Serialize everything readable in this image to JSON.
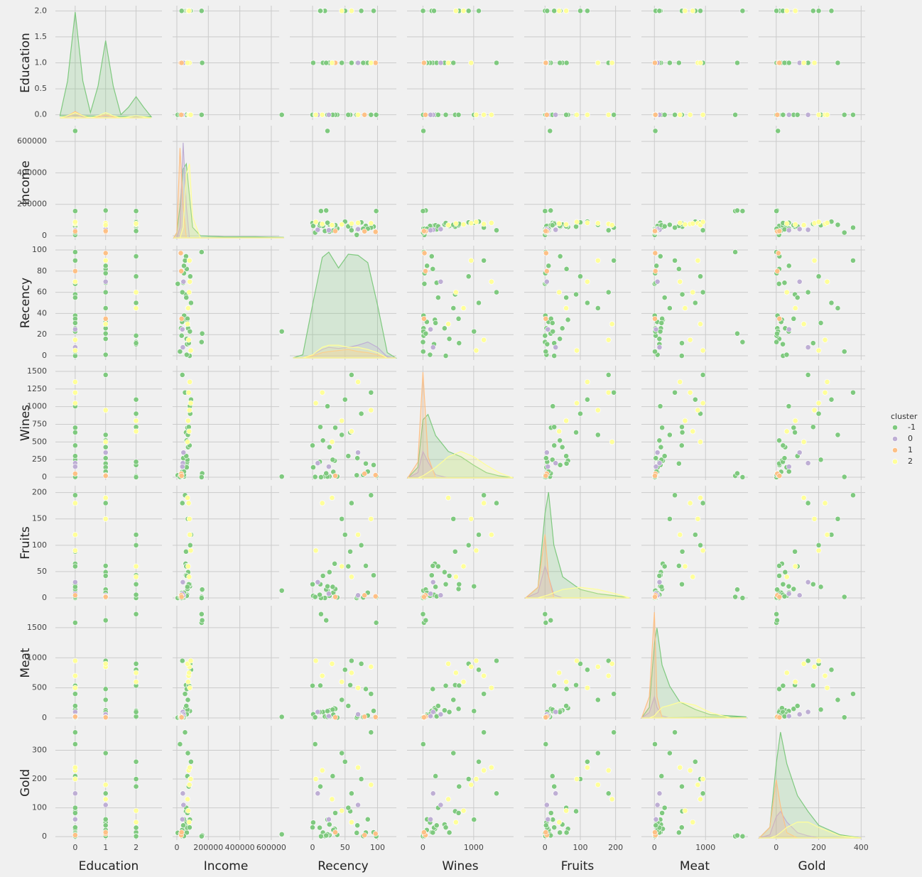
{
  "chart_data": {
    "type": "pairplot",
    "variables": [
      "Education",
      "Income",
      "Recency",
      "Wines",
      "Fruits",
      "Meat",
      "Gold"
    ],
    "grid": true,
    "legend": {
      "title": "cluster",
      "position": "right"
    },
    "axes": [
      {
        "xlim": [
          -0.65,
          2.85
        ],
        "xticks": [
          0,
          1,
          2
        ],
        "ylim": [
          -0.1,
          2.1
        ],
        "yticks": [
          {
            "value": 0,
            "label": "0.0"
          },
          {
            "value": 0.5,
            "label": "0.5"
          },
          {
            "value": 1,
            "label": "1.0"
          },
          {
            "value": 1.5,
            "label": "1.5"
          },
          {
            "value": 2,
            "label": "2.0"
          }
        ]
      },
      {
        "xlim": [
          -27000,
          650000
        ],
        "xticks": [
          0,
          200000,
          400000,
          600000
        ],
        "ylim": [
          -27000,
          700000
        ],
        "yticks": [
          0,
          200000,
          400000,
          600000
        ]
      },
      {
        "xlim": [
          -35,
          129
        ],
        "xticks": [
          0,
          50,
          100
        ],
        "ylim": [
          -4,
          104
        ],
        "yticks": [
          0,
          20,
          40,
          60,
          80,
          100
        ]
      },
      {
        "xlim": [
          -314,
          1786
        ],
        "xticks": [
          0,
          1000
        ],
        "ylim": [
          -40,
          1580
        ],
        "yticks": [
          0,
          250,
          500,
          750,
          1000,
          1250,
          1500
        ]
      },
      {
        "xlim": [
          -59,
          243
        ],
        "xticks": [
          0,
          100,
          200
        ],
        "ylim": [
          -4,
          213
        ],
        "yticks": [
          0,
          50,
          100,
          150,
          200
        ]
      },
      {
        "xlim": [
          -254,
          1831
        ],
        "xticks": [
          0,
          1000
        ],
        "ylim": [
          -35,
          1864
        ],
        "yticks": [
          0,
          500,
          1000,
          1500
        ]
      },
      {
        "xlim": [
          -83,
          419
        ],
        "xticks": [
          0,
          200,
          400
        ],
        "ylim": [
          -12,
          385
        ],
        "yticks": [
          0,
          100,
          200,
          300
        ]
      }
    ],
    "series": [
      {
        "name": "-1",
        "color": "#7fc97f",
        "values": [
          [
            0,
            58138,
            58,
            635,
            88,
            546,
            88
          ],
          [
            0,
            46344,
            38,
            11,
            1,
            6,
            6
          ],
          [
            1,
            71613,
            26,
            426,
            49,
            127,
            42
          ],
          [
            0,
            26646,
            26,
            11,
            4,
            20,
            5
          ],
          [
            2,
            58293,
            94,
            173,
            43,
            118,
            15
          ],
          [
            1,
            62513,
            16,
            520,
            42,
            98,
            14
          ],
          [
            0,
            55635,
            34,
            235,
            65,
            164,
            27
          ],
          [
            1,
            33454,
            32,
            76,
            10,
            56,
            23
          ],
          [
            2,
            30351,
            19,
            14,
            0,
            24,
            2
          ],
          [
            0,
            5648,
            68,
            28,
            0,
            6,
            13
          ],
          [
            1,
            63033,
            82,
            194,
            61,
            480,
            14
          ],
          [
            0,
            666666,
            23,
            9,
            14,
            18,
            8
          ],
          [
            0,
            157243,
            98,
            20,
            2,
            1582,
            1
          ],
          [
            1,
            160803,
            21,
            55,
            16,
            1622,
            4
          ],
          [
            2,
            157146,
            13,
            1,
            0,
            1725,
            1
          ],
          [
            0,
            82800,
            23,
            1006,
            22,
            115,
            59
          ],
          [
            1,
            44931,
            78,
            32,
            1,
            14,
            2
          ],
          [
            2,
            65324,
            11,
            218,
            6,
            98,
            31
          ],
          [
            0,
            81044,
            0,
            450,
            26,
            535,
            32
          ],
          [
            1,
            62499,
            1,
            140,
            4,
            61,
            49
          ],
          [
            0,
            67353,
            35,
            702,
            17,
            151,
            82
          ],
          [
            2,
            75777,
            12,
            712,
            26,
            538,
            174
          ],
          [
            0,
            66991,
            31,
            248,
            21,
            139,
            210
          ],
          [
            1,
            40689,
            69,
            270,
            3,
            27,
            39
          ],
          [
            2,
            90000,
            50,
            1100,
            120,
            800,
            260
          ],
          [
            0,
            20000,
            4,
            5,
            2,
            10,
            321
          ],
          [
            1,
            35000,
            60,
            1450,
            180,
            950,
            150
          ],
          [
            0,
            52000,
            90,
            1200,
            195,
            400,
            362
          ],
          [
            1,
            70000,
            45,
            600,
            150,
            300,
            290
          ],
          [
            2,
            85000,
            75,
            900,
            100,
            900,
            200
          ],
          [
            0,
            60000,
            55,
            300,
            60,
            200,
            100
          ],
          [
            1,
            45000,
            85,
            80,
            10,
            40,
            60
          ]
        ]
      },
      {
        "name": "0",
        "color": "#beaed4",
        "values": [
          [
            0,
            38000,
            8,
            200,
            30,
            100,
            150
          ],
          [
            1,
            42000,
            70,
            350,
            5,
            60,
            110
          ],
          [
            0,
            35000,
            25,
            150,
            8,
            30,
            60
          ]
        ]
      },
      {
        "name": "1",
        "color": "#fdc086",
        "values": [
          [
            1,
            25000,
            97,
            30,
            3,
            15,
            10
          ],
          [
            0,
            28000,
            80,
            50,
            5,
            20,
            5
          ],
          [
            1,
            30000,
            35,
            20,
            2,
            10,
            15
          ]
        ]
      },
      {
        "name": "2",
        "color": "#ffff99",
        "values": [
          [
            0,
            75000,
            15,
            1200,
            180,
            700,
            230
          ],
          [
            1,
            80000,
            90,
            950,
            150,
            850,
            180
          ],
          [
            2,
            72000,
            45,
            800,
            60,
            600,
            90
          ],
          [
            0,
            82000,
            70,
            1350,
            120,
            500,
            240
          ],
          [
            1,
            68000,
            30,
            500,
            190,
            900,
            130
          ],
          [
            2,
            78000,
            60,
            650,
            40,
            750,
            50
          ],
          [
            0,
            88000,
            5,
            1050,
            90,
            950,
            200
          ]
        ]
      }
    ],
    "kde": [
      {
        "x": [
          -0.5,
          -0.25,
          0,
          0.25,
          0.5,
          0.75,
          1,
          1.25,
          1.5,
          1.75,
          2,
          2.25,
          2.5
        ],
        "values": [
          [
            0.02,
            0.35,
            1.0,
            0.35,
            0.05,
            0.3,
            0.73,
            0.3,
            0.03,
            0.1,
            0.2,
            0.1,
            0.01
          ],
          [
            0,
            0.01,
            0.03,
            0.01,
            0,
            0.01,
            0.02,
            0.01,
            0,
            0,
            0.01,
            0,
            0
          ],
          [
            0,
            0.02,
            0.06,
            0.02,
            0,
            0.01,
            0.03,
            0.01,
            0,
            0,
            0,
            0,
            0
          ],
          [
            0,
            0.02,
            0.05,
            0.02,
            0,
            0.02,
            0.05,
            0.02,
            0,
            0.01,
            0.02,
            0.01,
            0
          ]
        ]
      },
      {
        "x": [
          -20000,
          0,
          20000,
          40000,
          60000,
          80000,
          100000,
          150000,
          300000,
          500000,
          680000
        ],
        "values": [
          [
            0,
            0.05,
            0.3,
            0.65,
            0.7,
            0.4,
            0.1,
            0.02,
            0.01,
            0.01,
            0.005
          ],
          [
            0,
            0,
            0.1,
            0.9,
            0.3,
            0,
            0,
            0,
            0,
            0,
            0
          ],
          [
            0,
            0.05,
            0.85,
            0.3,
            0,
            0,
            0,
            0,
            0,
            0,
            0
          ],
          [
            0,
            0,
            0,
            0.1,
            0.6,
            0.7,
            0.2,
            0,
            0,
            0,
            0
          ]
        ]
      },
      {
        "x": [
          -30,
          -15,
          0,
          15,
          25,
          40,
          55,
          70,
          85,
          100,
          115,
          128
        ],
        "values": [
          [
            0,
            0.03,
            0.5,
            0.95,
            1.0,
            0.85,
            0.98,
            0.97,
            0.9,
            0.5,
            0.05,
            0
          ],
          [
            0,
            0,
            0.03,
            0.08,
            0.1,
            0.09,
            0.1,
            0.12,
            0.15,
            0.1,
            0.01,
            0
          ],
          [
            0,
            0,
            0.02,
            0.05,
            0.06,
            0.07,
            0.08,
            0.06,
            0.05,
            0.03,
            0,
            0
          ],
          [
            0,
            0,
            0.03,
            0.1,
            0.12,
            0.12,
            0.1,
            0.1,
            0.08,
            0.05,
            0,
            0
          ]
        ]
      },
      {
        "x": [
          -300,
          -100,
          0,
          100,
          250,
          500,
          750,
          1000,
          1250,
          1500,
          1780
        ],
        "values": [
          [
            0,
            0.1,
            0.55,
            0.6,
            0.4,
            0.25,
            0.2,
            0.12,
            0.05,
            0.02,
            0
          ],
          [
            0,
            0.05,
            0.25,
            0.15,
            0.03,
            0,
            0,
            0,
            0,
            0,
            0
          ],
          [
            0,
            0.15,
            1.0,
            0.2,
            0,
            0,
            0,
            0,
            0,
            0,
            0
          ],
          [
            0,
            0,
            0.02,
            0.05,
            0.1,
            0.2,
            0.25,
            0.2,
            0.12,
            0.05,
            0
          ]
        ]
      },
      {
        "x": [
          -55,
          -20,
          0,
          10,
          25,
          50,
          100,
          150,
          200,
          240
        ],
        "values": [
          [
            0,
            0.1,
            0.8,
            1.0,
            0.5,
            0.2,
            0.08,
            0.04,
            0.02,
            0
          ],
          [
            0,
            0.05,
            0.3,
            0.2,
            0.03,
            0,
            0,
            0,
            0,
            0
          ],
          [
            0,
            0.1,
            0.6,
            0.2,
            0,
            0,
            0,
            0,
            0,
            0
          ],
          [
            0,
            0,
            0.02,
            0.03,
            0.05,
            0.08,
            0.1,
            0.08,
            0.04,
            0
          ]
        ]
      },
      {
        "x": [
          -250,
          -100,
          0,
          50,
          150,
          300,
          500,
          800,
          1100,
          1500,
          1800
        ],
        "values": [
          [
            0,
            0.1,
            0.7,
            0.85,
            0.5,
            0.3,
            0.15,
            0.08,
            0.03,
            0.02,
            0.01
          ],
          [
            0,
            0.05,
            0.2,
            0.1,
            0.02,
            0,
            0,
            0,
            0,
            0,
            0
          ],
          [
            0,
            0.2,
            1.0,
            0.2,
            0,
            0,
            0,
            0,
            0,
            0,
            0
          ],
          [
            0,
            0,
            0.02,
            0.05,
            0.1,
            0.12,
            0.15,
            0.12,
            0.05,
            0,
            0
          ]
        ]
      },
      {
        "x": [
          -80,
          -30,
          0,
          20,
          50,
          100,
          150,
          200,
          300,
          400
        ],
        "values": [
          [
            0,
            0.1,
            0.7,
            1.0,
            0.7,
            0.4,
            0.25,
            0.12,
            0.03,
            0
          ],
          [
            0,
            0.03,
            0.2,
            0.25,
            0.15,
            0.05,
            0.02,
            0,
            0,
            0
          ],
          [
            0,
            0.1,
            0.55,
            0.3,
            0.05,
            0,
            0,
            0,
            0,
            0
          ],
          [
            0,
            0,
            0.02,
            0.05,
            0.1,
            0.15,
            0.15,
            0.1,
            0.02,
            0
          ]
        ]
      }
    ]
  }
}
